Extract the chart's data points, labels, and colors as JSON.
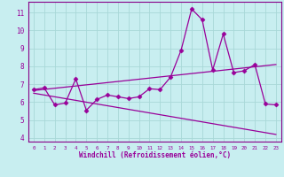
{
  "title": "",
  "xlabel": "Windchill (Refroidissement éolien,°C)",
  "ylabel": "",
  "bg_color": "#c8eef0",
  "line_color": "#990099",
  "grid_color": "#a8d8d8",
  "spine_color": "#880088",
  "xlim": [
    -0.5,
    23.5
  ],
  "ylim": [
    3.8,
    11.6
  ],
  "xticks": [
    0,
    1,
    2,
    3,
    4,
    5,
    6,
    7,
    8,
    9,
    10,
    11,
    12,
    13,
    14,
    15,
    16,
    17,
    18,
    19,
    20,
    21,
    22,
    23
  ],
  "yticks": [
    4,
    5,
    6,
    7,
    8,
    9,
    10,
    11
  ],
  "data_x": [
    0,
    1,
    2,
    3,
    4,
    5,
    6,
    7,
    8,
    9,
    10,
    11,
    12,
    13,
    14,
    15,
    16,
    17,
    18,
    19,
    20,
    21,
    22,
    23
  ],
  "data_y": [
    6.7,
    6.8,
    5.85,
    5.95,
    7.3,
    5.55,
    6.15,
    6.4,
    6.3,
    6.2,
    6.3,
    6.75,
    6.7,
    7.4,
    8.9,
    11.2,
    10.6,
    7.8,
    9.8,
    7.65,
    7.75,
    8.1,
    5.9,
    5.85
  ],
  "trend1_x": [
    0,
    23
  ],
  "trend1_y": [
    6.65,
    8.1
  ],
  "trend2_x": [
    0,
    23
  ],
  "trend2_y": [
    6.5,
    4.2
  ],
  "marker": "D",
  "markersize": 2.5,
  "linewidth": 0.9
}
